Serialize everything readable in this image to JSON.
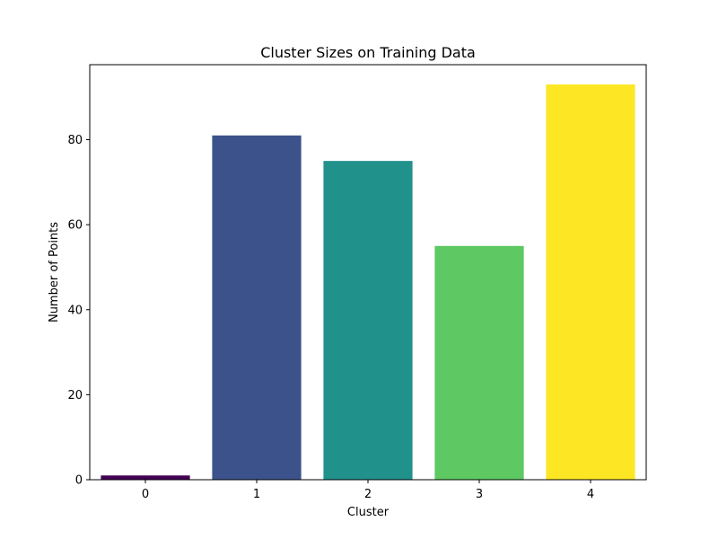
{
  "chart_data": {
    "type": "bar",
    "title": "Cluster Sizes on Training Data",
    "xlabel": "Cluster",
    "ylabel": "Number of Points",
    "categories": [
      "0",
      "1",
      "2",
      "3",
      "4"
    ],
    "values": [
      1,
      81,
      75,
      55,
      93
    ],
    "colors": [
      "#440154",
      "#3b528b",
      "#21918c",
      "#5ec962",
      "#fde725"
    ],
    "ylim": [
      0,
      97.65
    ],
    "yticks": [
      0,
      20,
      40,
      60,
      80
    ],
    "grid": false,
    "legend": "none"
  }
}
